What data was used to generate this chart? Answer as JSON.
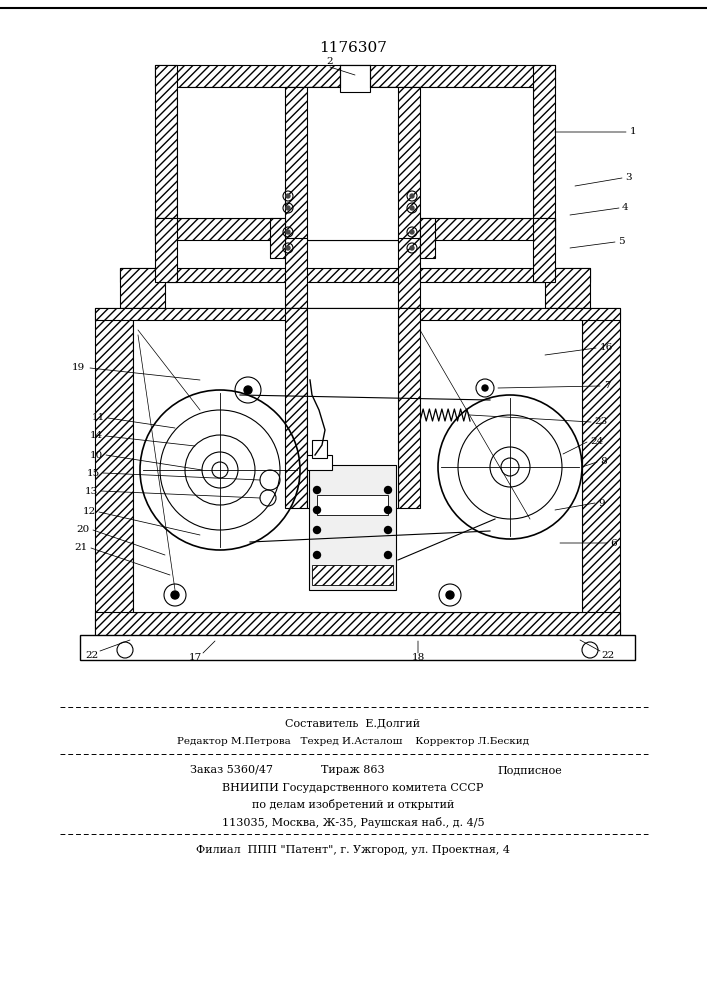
{
  "title": "1176307",
  "bg_color": "#ffffff",
  "footer_lines": [
    "Составитель  Е.Долгий",
    "Редактор М.Петрова   Техред И.Асталош    Корректор Л.Бескид",
    "Заказ 5360/47      Тираж 863          Подписное",
    "ВНИИПИ Государственного комитета СССР",
    "по делам изобретений и открытий",
    "113035, Москва, Ж-35, Раушская наб., д. 4/5",
    "Филиал  ППП \"Патент\", г. Ужгород, ул. Проектная, 4"
  ]
}
